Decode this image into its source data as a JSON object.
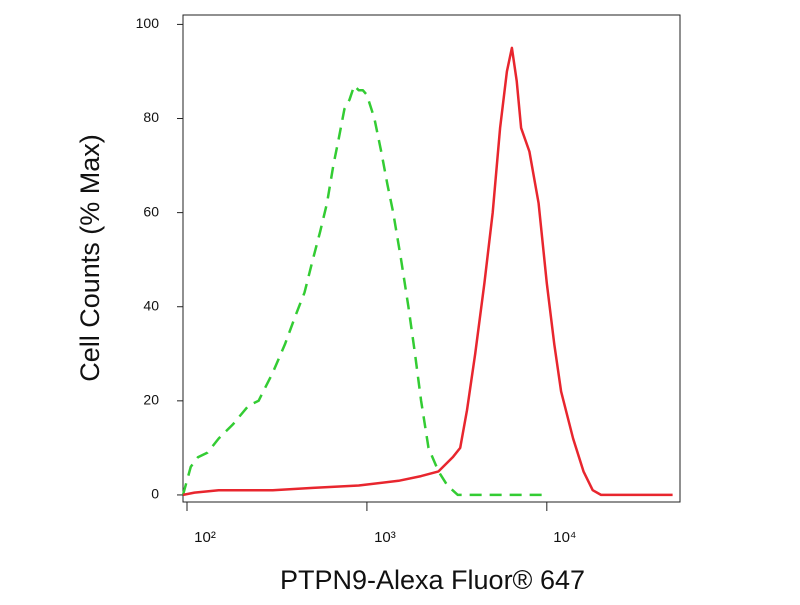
{
  "chart_data": {
    "type": "line",
    "xlabel": "PTPN9-Alexa Fluor® 647",
    "ylabel": "Cell Counts (% Max)",
    "xscale": "log",
    "xlim": [
      95,
      55000
    ],
    "ylim": [
      -1.5,
      102
    ],
    "xticks": [
      {
        "value": 100,
        "label": "10²"
      },
      {
        "value": 1000,
        "label": "10³"
      },
      {
        "value": 10000,
        "label": "10⁴"
      }
    ],
    "yticks": [
      0,
      20,
      40,
      60,
      80,
      100
    ],
    "series": [
      {
        "color": "#33cc33",
        "dash": true,
        "x": [
          95,
          105,
          115,
          130,
          150,
          180,
          220,
          250,
          300,
          350,
          400,
          450,
          500,
          550,
          600,
          650,
          700,
          750,
          800,
          850,
          900,
          950,
          1000,
          1100,
          1200,
          1300,
          1400,
          1550,
          1700,
          1850,
          2000,
          2200,
          2500,
          2800,
          3200,
          5000,
          10000
        ],
        "values": [
          0,
          6,
          8,
          9,
          12,
          15,
          19,
          20,
          26,
          32,
          38,
          43,
          50,
          56,
          62,
          70,
          76,
          82,
          84,
          87,
          86,
          86,
          85,
          80,
          73,
          66,
          60,
          50,
          40,
          30,
          20,
          10,
          5,
          2,
          0,
          0,
          0
        ]
      },
      {
        "color": "#e8262e",
        "dash": false,
        "x": [
          95,
          110,
          150,
          300,
          500,
          900,
          1500,
          2000,
          2500,
          3000,
          3300,
          3600,
          4000,
          4500,
          5000,
          5500,
          6000,
          6400,
          6800,
          7200,
          8000,
          9000,
          10000,
          11000,
          12000,
          14000,
          16000,
          18000,
          20000,
          30000,
          50000
        ],
        "values": [
          0,
          0.5,
          1,
          1,
          1.5,
          2,
          3,
          4,
          5,
          8,
          10,
          18,
          30,
          45,
          60,
          78,
          90,
          95,
          88,
          78,
          73,
          62,
          45,
          32,
          22,
          12,
          5,
          1,
          0,
          0,
          0
        ]
      }
    ]
  }
}
